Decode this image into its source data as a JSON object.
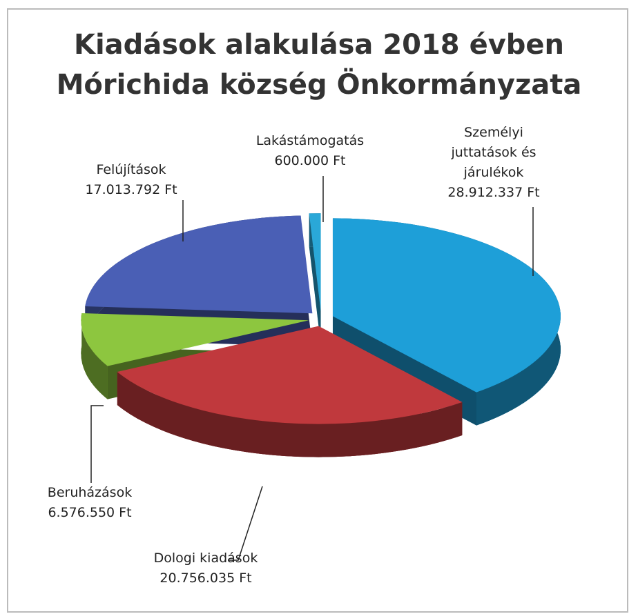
{
  "chart_data": {
    "type": "pie",
    "title": "Kiadások alakulása 2018 évben",
    "subtitle": "Mórichida község Önkormányzata",
    "categories": [
      "Személyi juttatások és járulékok",
      "Dologi kiadások",
      "Beruházások",
      "Felújítások",
      "Lakástámogatás"
    ],
    "values": [
      28912337,
      20756035,
      6576550,
      17013792,
      600000
    ],
    "value_labels": [
      "28.912.337 Ft",
      "20.756.035 Ft",
      "6.576.550 Ft",
      "17.013.792 Ft",
      "600.000 Ft"
    ],
    "colors": [
      "#1e9fd8",
      "#c0393d",
      "#8dc63f",
      "#4a5fb5",
      "#2aa8d8"
    ]
  }
}
